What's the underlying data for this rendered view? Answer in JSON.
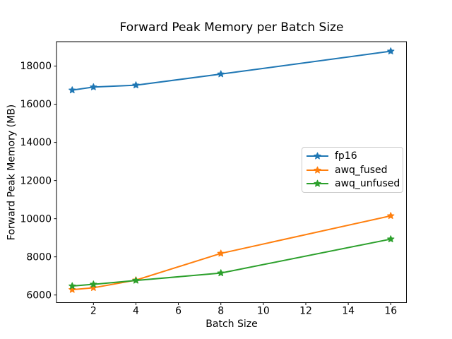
{
  "figure": {
    "background": "#ffffff",
    "axis_color": "#000000",
    "legend_border_color": "#cccccc"
  },
  "chart_data": {
    "type": "line",
    "title": "Forward Peak Memory per Batch Size",
    "xlabel": "Batch Size",
    "ylabel": "Forward Peak Memory (MB)",
    "x": [
      1,
      2,
      4,
      8,
      16
    ],
    "series": [
      {
        "name": "fp16",
        "color": "#1f77b4",
        "values": [
          16740,
          16900,
          17000,
          17580,
          18780
        ]
      },
      {
        "name": "awq_fused",
        "color": "#ff7f0e",
        "values": [
          6280,
          6380,
          6780,
          8180,
          10150
        ]
      },
      {
        "name": "awq_unfused",
        "color": "#2ca02c",
        "values": [
          6470,
          6560,
          6760,
          7150,
          8930
        ]
      }
    ],
    "marker": "star",
    "xlim": [
      0.26,
      16.74
    ],
    "ylim": [
      5600,
      19280
    ],
    "xticks": [
      2,
      4,
      6,
      8,
      10,
      12,
      14,
      16
    ],
    "yticks": [
      6000,
      8000,
      10000,
      12000,
      14000,
      16000,
      18000
    ],
    "grid": false,
    "legend_position": "center-right"
  }
}
